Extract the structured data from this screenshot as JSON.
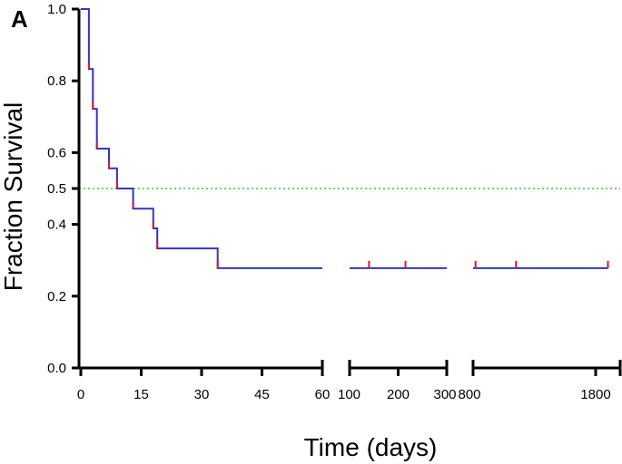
{
  "panel_label": "A",
  "chart_data": {
    "type": "line",
    "style": "kaplan-meier step",
    "xlabel": "Time (days)",
    "ylabel": "Fraction Survival",
    "x_axis": "broken",
    "segments": [
      {
        "xlim": [
          0,
          60
        ],
        "ticks": [
          0,
          15,
          30,
          45,
          60
        ],
        "tick_labels": [
          "0",
          "15",
          "30",
          "45",
          "60"
        ]
      },
      {
        "xlim": [
          100,
          300
        ],
        "ticks": [
          100,
          200,
          300
        ],
        "tick_labels": [
          "100",
          "200",
          "300"
        ]
      },
      {
        "xlim": [
          800,
          2000
        ],
        "ticks": [
          800,
          1800
        ],
        "tick_labels": [
          "800",
          "1800"
        ]
      }
    ],
    "ylim": [
      0,
      1
    ],
    "y_ticks": [
      0.0,
      0.2,
      0.4,
      0.5,
      0.6,
      0.8,
      1.0
    ],
    "y_tick_labels": [
      "0.0",
      "0.2",
      "0.4",
      "0.5",
      "0.6",
      "0.8",
      "1.0"
    ],
    "reference_line": {
      "y": 0.5,
      "style": "dotted",
      "color": "#33cc33"
    },
    "series": [
      {
        "color": "#3333cc",
        "steps": [
          {
            "x": 0,
            "y": 1.0
          },
          {
            "x": 2,
            "y": 0.833
          },
          {
            "x": 3,
            "y": 0.722
          },
          {
            "x": 4,
            "y": 0.611
          },
          {
            "x": 7,
            "y": 0.556
          },
          {
            "x": 9,
            "y": 0.5
          },
          {
            "x": 13,
            "y": 0.444
          },
          {
            "x": 18,
            "y": 0.389
          },
          {
            "x": 19,
            "y": 0.333
          },
          {
            "x": 34,
            "y": 0.278
          },
          {
            "x": 60,
            "y": 0.278
          },
          {
            "x": 100,
            "y": 0.278
          },
          {
            "x": 300,
            "y": 0.278
          },
          {
            "x": 800,
            "y": 0.278
          },
          {
            "x": 1900,
            "y": 0.278
          }
        ],
        "drop_marks": [
          2,
          3,
          4,
          7,
          9,
          13,
          18,
          19,
          34
        ],
        "censored": [
          140,
          215,
          820,
          1150,
          1900
        ],
        "mark_color": "#e8141a"
      }
    ]
  }
}
